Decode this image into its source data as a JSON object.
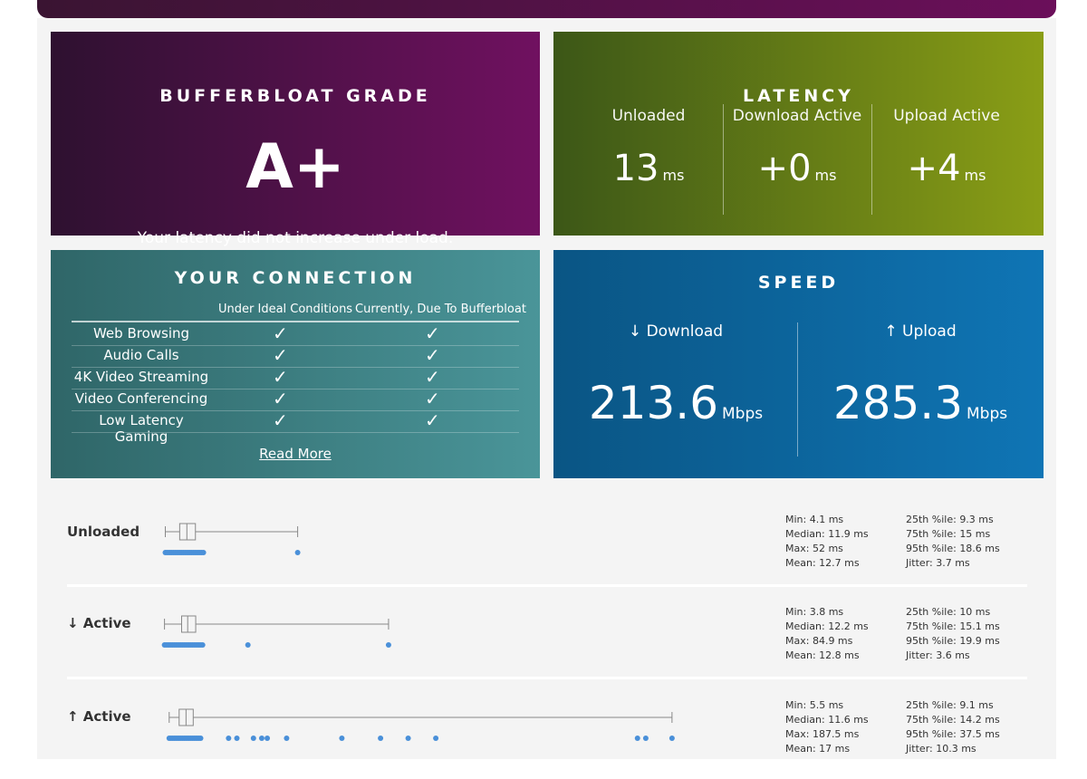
{
  "grade": {
    "title": "BUFFERBLOAT GRADE",
    "value": "A+",
    "message": "Your latency did not increase under load."
  },
  "latency": {
    "title": "LATENCY",
    "columns": [
      {
        "label": "Unloaded",
        "value": "13",
        "unit": "ms"
      },
      {
        "label": "Download Active",
        "value": "+0",
        "unit": "ms"
      },
      {
        "label": "Upload Active",
        "value": "+4",
        "unit": "ms"
      }
    ]
  },
  "connection": {
    "title": "YOUR CONNECTION",
    "col_ideal": "Under Ideal Conditions",
    "col_current": "Currently, Due To Bufferbloat",
    "check_glyph": "✓",
    "rows": [
      {
        "name": "Web Browsing",
        "ideal": true,
        "current": true
      },
      {
        "name": "Audio Calls",
        "ideal": true,
        "current": true
      },
      {
        "name": "4K Video Streaming",
        "ideal": true,
        "current": true
      },
      {
        "name": "Video Conferencing",
        "ideal": true,
        "current": true
      },
      {
        "name": "Low Latency Gaming",
        "ideal": true,
        "current": true
      }
    ],
    "read_more": "Read More"
  },
  "speed": {
    "title": "SPEED",
    "download": {
      "label": "↓ Download",
      "value": "213.6",
      "unit": "Mbps"
    },
    "upload": {
      "label": "↑ Upload",
      "value": "285.3",
      "unit": "Mbps"
    }
  },
  "latency_rows": [
    {
      "label": "Unloaded",
      "min": 4.1,
      "q1": 9.3,
      "median": 11.9,
      "q3": 15,
      "max": 52,
      "outliers": [
        52
      ],
      "stats_left": [
        "Min: 4.1 ms",
        "Median: 11.9 ms",
        "Max: 52 ms",
        "Mean: 12.7 ms"
      ],
      "stats_right": [
        "25th %ile: 9.3 ms",
        "75th %ile: 15 ms",
        "95th %ile: 18.6 ms",
        "Jitter: 3.7 ms"
      ]
    },
    {
      "label": "↓ Active",
      "min": 3.8,
      "q1": 10,
      "median": 12.2,
      "q3": 15.1,
      "max": 84.9,
      "outliers": [
        34,
        84.9
      ],
      "stats_left": [
        "Min: 3.8 ms",
        "Median: 12.2 ms",
        "Max: 84.9 ms",
        "Mean: 12.8 ms"
      ],
      "stats_right": [
        "25th %ile: 10 ms",
        "75th %ile: 15.1 ms",
        "95th %ile: 19.9 ms",
        "Jitter: 3.6 ms"
      ]
    },
    {
      "label": "↑ Active",
      "min": 5.5,
      "q1": 9.1,
      "median": 11.6,
      "q3": 14.2,
      "max": 187.5,
      "outliers": [
        27,
        30,
        36,
        39,
        41,
        48,
        68,
        82,
        92,
        102,
        175,
        178,
        187.5
      ],
      "stats_left": [
        "Min: 5.5 ms",
        "Median: 11.6 ms",
        "Max: 187.5 ms",
        "Mean: 17 ms"
      ],
      "stats_right": [
        "25th %ile: 9.1 ms",
        "75th %ile: 14.2 ms",
        "95th %ile: 37.5 ms",
        "Jitter: 10.3 ms"
      ]
    }
  ],
  "colors": {
    "dot": "#4a90d9",
    "box": "#888888"
  }
}
